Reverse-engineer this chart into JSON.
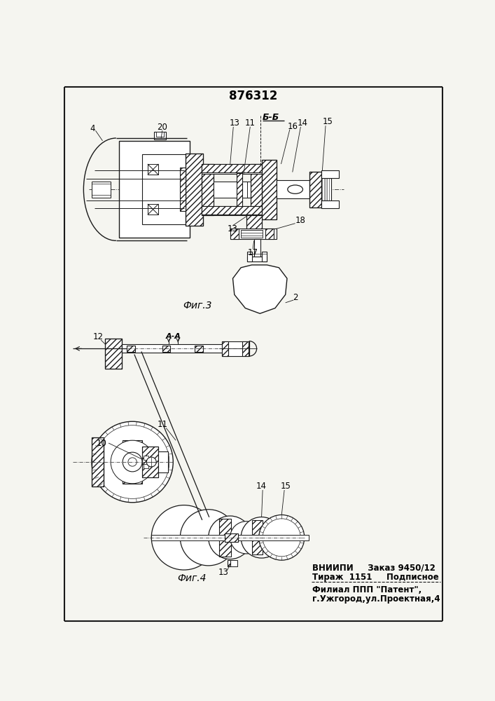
{
  "title": "876312",
  "bg_color": "#f5f5f0",
  "line_color": "#1a1a1a",
  "fig3_label": "Фиг.3",
  "fig4_label": "Фиг.4",
  "section_label": "Б-Б",
  "footer_line1": "ВНИИПИ     Заказ 9450/12",
  "footer_line2": "Тираж  1151     Подписное",
  "footer_line3": "Филиал ППП \"Патент\",",
  "footer_line4": "г.Ужгород,ул.Проектная,4"
}
